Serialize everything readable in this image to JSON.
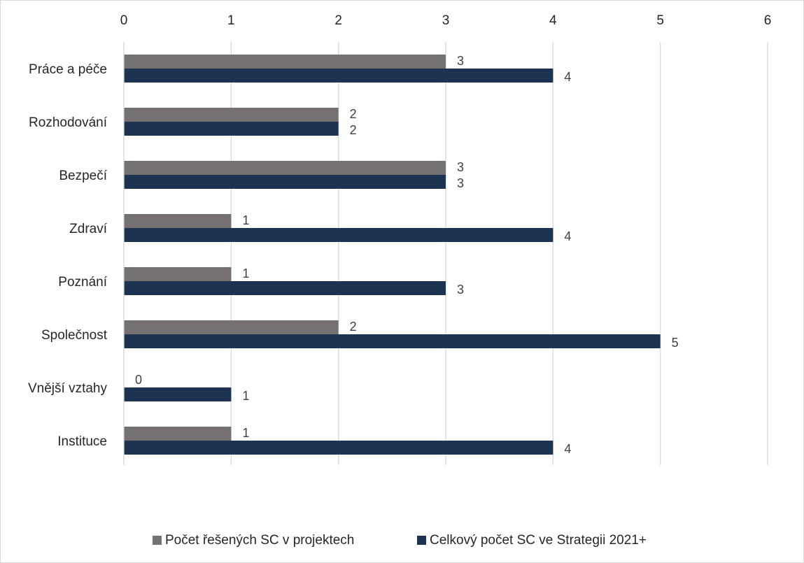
{
  "chart_data": {
    "type": "bar",
    "orientation": "horizontal",
    "categories": [
      "Práce a péče",
      "Rozhodování",
      "Bezpečí",
      "Zdraví",
      "Poznání",
      "Společnost",
      "Vnější vztahy",
      "Instituce"
    ],
    "series": [
      {
        "name": "Počet řešených SC v projektech",
        "color": "#767171",
        "values": [
          3,
          2,
          3,
          1,
          1,
          2,
          0,
          1
        ]
      },
      {
        "name": "Celkový počet SC ve Strategii 2021+",
        "color": "#1c3452",
        "values": [
          4,
          2,
          3,
          4,
          3,
          5,
          1,
          4
        ]
      }
    ],
    "xlim": [
      0,
      6
    ],
    "xticks": [
      "0",
      "1",
      "2",
      "3",
      "4",
      "5",
      "6"
    ],
    "x_axis_position": "top",
    "grid": true,
    "data_labels": true,
    "legend_position": "bottom"
  }
}
